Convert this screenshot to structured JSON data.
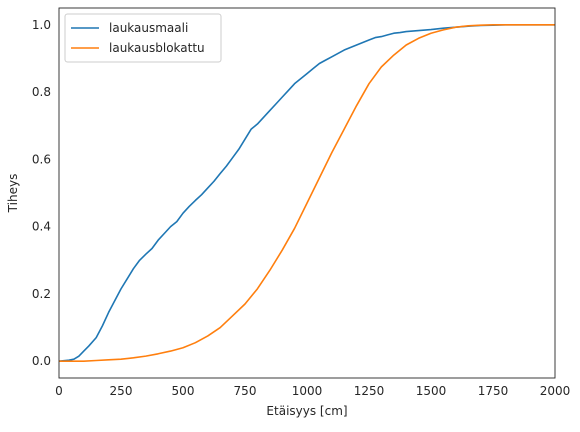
{
  "chart_data": {
    "type": "line",
    "xlabel": "Etäisyys [cm]",
    "ylabel": "Tiheys",
    "xlim": [
      0,
      2000
    ],
    "ylim": [
      -0.05,
      1.05
    ],
    "xticks": [
      0,
      250,
      500,
      750,
      1000,
      1250,
      1500,
      1750,
      2000
    ],
    "yticks": [
      0.0,
      0.2,
      0.4,
      0.6,
      0.8,
      1.0
    ],
    "grid": false,
    "legend_position": "top-left",
    "series": [
      {
        "name": "laukausmaali",
        "color": "#1f77b4",
        "x": [
          0,
          40,
          60,
          80,
          100,
          120,
          150,
          175,
          200,
          225,
          250,
          275,
          300,
          325,
          350,
          375,
          400,
          425,
          450,
          475,
          500,
          525,
          550,
          575,
          600,
          625,
          650,
          675,
          700,
          725,
          750,
          775,
          800,
          825,
          850,
          875,
          900,
          925,
          950,
          975,
          1000,
          1025,
          1050,
          1075,
          1100,
          1125,
          1150,
          1200,
          1250,
          1275,
          1300,
          1325,
          1350,
          1375,
          1400,
          1450,
          1500,
          1550,
          1600,
          1650,
          1700,
          1750,
          1800,
          1850,
          2000
        ],
        "y": [
          0.0,
          0.003,
          0.006,
          0.015,
          0.03,
          0.045,
          0.07,
          0.105,
          0.145,
          0.18,
          0.215,
          0.245,
          0.275,
          0.3,
          0.318,
          0.335,
          0.36,
          0.38,
          0.4,
          0.415,
          0.44,
          0.46,
          0.478,
          0.495,
          0.515,
          0.535,
          0.558,
          0.58,
          0.605,
          0.63,
          0.66,
          0.69,
          0.705,
          0.725,
          0.745,
          0.765,
          0.785,
          0.805,
          0.825,
          0.84,
          0.855,
          0.87,
          0.885,
          0.895,
          0.905,
          0.915,
          0.925,
          0.94,
          0.955,
          0.962,
          0.965,
          0.97,
          0.975,
          0.977,
          0.98,
          0.983,
          0.986,
          0.99,
          0.993,
          0.996,
          0.998,
          0.999,
          1.0,
          1.0,
          1.0
        ]
      },
      {
        "name": "laukausblokattu",
        "color": "#ff7f0e",
        "x": [
          0,
          50,
          100,
          150,
          200,
          250,
          300,
          350,
          400,
          450,
          500,
          550,
          600,
          650,
          700,
          750,
          800,
          850,
          900,
          950,
          1000,
          1050,
          1100,
          1150,
          1200,
          1250,
          1300,
          1350,
          1400,
          1450,
          1500,
          1550,
          1600,
          1650,
          1700,
          1750,
          1800,
          1850,
          1900,
          2000
        ],
        "y": [
          0.0,
          0.0,
          0.0,
          0.002,
          0.004,
          0.006,
          0.01,
          0.015,
          0.022,
          0.03,
          0.04,
          0.055,
          0.075,
          0.1,
          0.135,
          0.17,
          0.215,
          0.27,
          0.33,
          0.395,
          0.47,
          0.545,
          0.62,
          0.69,
          0.76,
          0.825,
          0.875,
          0.91,
          0.94,
          0.96,
          0.975,
          0.985,
          0.993,
          0.997,
          0.999,
          1.0,
          1.0,
          1.0,
          1.0,
          1.0
        ]
      }
    ]
  }
}
